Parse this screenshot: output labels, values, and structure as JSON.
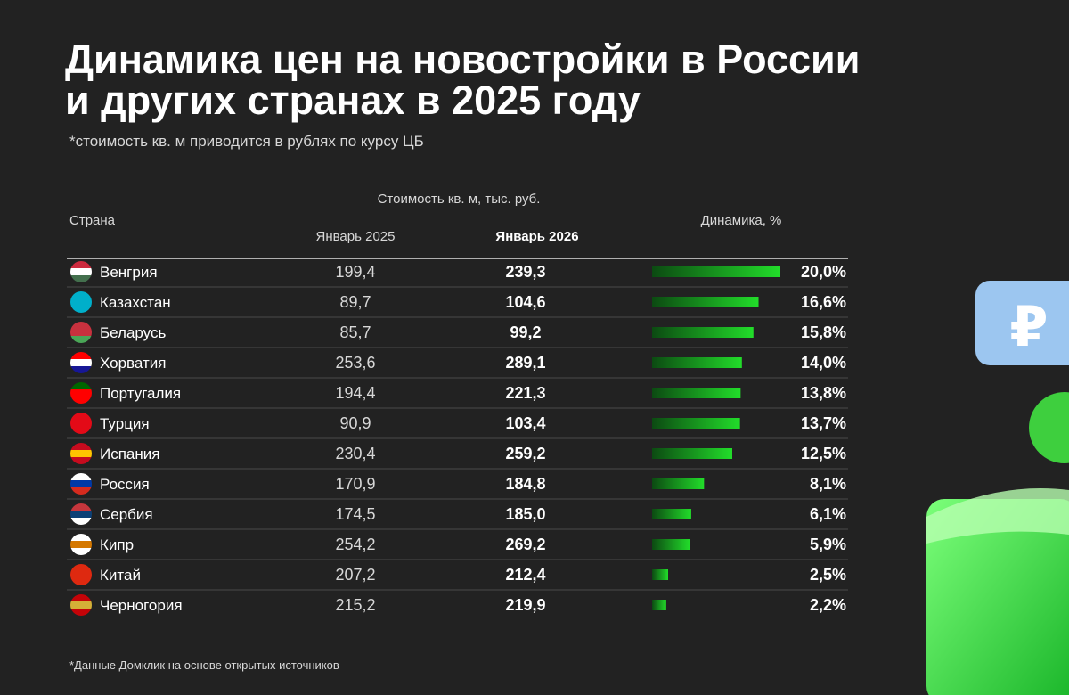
{
  "header": {
    "title_line1": "Динамика цен на новостройки в России",
    "title_line2": "и других странах в 2025 году",
    "subtitle": "*стоимость кв. м приводится в рублях по курсу ЦБ"
  },
  "table": {
    "columns": {
      "country": "Страна",
      "price_group": "Стоимость кв. м, тыс. руб.",
      "jan2025": "Январь 2025",
      "jan2026": "Январь 2026",
      "change": "Динамика, %"
    },
    "rows": [
      {
        "country": "Венгрия",
        "jan2025": "199,4",
        "jan2026": "239,3",
        "change": 20.0,
        "change_label": "20,0%"
      },
      {
        "country": "Казахстан",
        "jan2025": "89,7",
        "jan2026": "104,6",
        "change": 16.6,
        "change_label": "16,6%"
      },
      {
        "country": "Беларусь",
        "jan2025": "85,7",
        "jan2026": "99,2",
        "change": 15.8,
        "change_label": "15,8%"
      },
      {
        "country": "Хорватия",
        "jan2025": "253,6",
        "jan2026": "289,1",
        "change": 14.0,
        "change_label": "14,0%"
      },
      {
        "country": "Португалия",
        "jan2025": "194,4",
        "jan2026": "221,3",
        "change": 13.8,
        "change_label": "13,8%"
      },
      {
        "country": "Турция",
        "jan2025": "90,9",
        "jan2026": "103,4",
        "change": 13.7,
        "change_label": "13,7%"
      },
      {
        "country": "Испания",
        "jan2025": "230,4",
        "jan2026": "259,2",
        "change": 12.5,
        "change_label": "12,5%"
      },
      {
        "country": "Россия",
        "jan2025": "170,9",
        "jan2026": "184,8",
        "change": 8.1,
        "change_label": "8,1%"
      },
      {
        "country": "Сербия",
        "jan2025": "174,5",
        "jan2026": "185,0",
        "change": 6.1,
        "change_label": "6,1%"
      },
      {
        "country": "Кипр",
        "jan2025": "254,2",
        "jan2026": "269,2",
        "change": 5.9,
        "change_label": "5,9%"
      },
      {
        "country": "Китай",
        "jan2025": "207,2",
        "jan2026": "212,4",
        "change": 2.5,
        "change_label": "2,5%"
      },
      {
        "country": "Черногория",
        "jan2025": "215,2",
        "jan2026": "219,9",
        "change": 2.2,
        "change_label": "2,2%"
      }
    ]
  },
  "footnote": "*Данные Домклик на основе открытых источников"
}
